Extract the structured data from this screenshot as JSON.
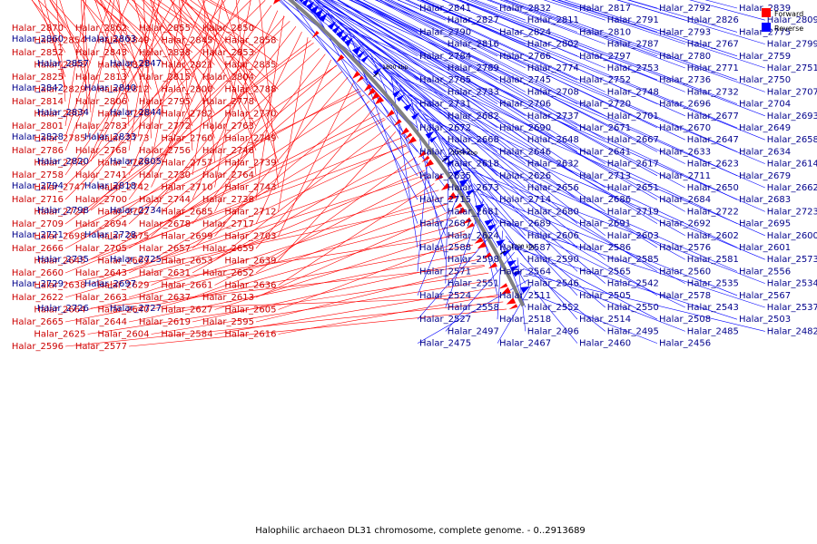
{
  "caption": "Halophilic archaeon DL31 chromosome, complete genome. - 0..2913689",
  "legend": [
    {
      "label": "Forward",
      "color": "#ff0000"
    },
    {
      "label": "Reverse",
      "color": "#0000ff"
    }
  ],
  "colors": {
    "forward": "#ff0000",
    "reverse": "#0000ff",
    "label_forward": "#cc0000",
    "label_reverse": "#00008b",
    "backbone": "#808080"
  },
  "ticks": [
    "2050 kbp",
    "2000 kbp",
    "1950 kbp",
    "1900 kbp",
    "1850 kbp",
    "1800 kbp",
    "1750 kbp",
    "1700 kbp"
  ],
  "forward_labels": [
    "Halar_2870",
    "Halar_2862",
    "Halar_2855",
    "Halar_2850",
    "Halar_2854",
    "Halar_2849",
    "Halar_2845",
    "Halar_2858",
    "Halar_2852",
    "Halar_2843",
    "Halar_2838",
    "Halar_2853",
    "Halar_2848",
    "Halar_2831",
    "Halar_2821",
    "Halar_2835",
    "Halar_2825",
    "Halar_2813",
    "Halar_2815",
    "Halar_2804",
    "Halar_2829",
    "Halar_2812",
    "Halar_2800",
    "Halar_2788",
    "Halar_2814",
    "Halar_2806",
    "Halar_2795",
    "Halar_2778",
    "Halar_2807",
    "Halar_2796",
    "Halar_2782",
    "Halar_2770",
    "Halar_2801",
    "Halar_2783",
    "Halar_2772",
    "Halar_2763",
    "Halar_2785",
    "Halar_2773",
    "Halar_2760",
    "Halar_2749",
    "Halar_2786",
    "Halar_2768",
    "Halar_2756",
    "Halar_2746",
    "Halar_2776",
    "Halar_2769",
    "Halar_2757",
    "Halar_2739",
    "Halar_2758",
    "Halar_2741",
    "Halar_2730",
    "Halar_2764",
    "Halar_2747",
    "Halar_2742",
    "Halar_2710",
    "Halar_2743",
    "Halar_2716",
    "Halar_2700",
    "Halar_2744",
    "Halar_2738",
    "Halar_2724",
    "Halar_2702",
    "Halar_2685",
    "Halar_2712",
    "Halar_2709",
    "Halar_2694",
    "Halar_2678",
    "Halar_2717",
    "Halar_2698",
    "Halar_2675",
    "Halar_2699",
    "Halar_2703",
    "Halar_2666",
    "Halar_2705",
    "Halar_2657",
    "Halar_2659",
    "Halar_2645",
    "Halar_2669",
    "Halar_2653",
    "Halar_2639",
    "Halar_2660",
    "Halar_2643",
    "Halar_2631",
    "Halar_2652",
    "Halar_2638",
    "Halar_2629",
    "Halar_2661",
    "Halar_2636",
    "Halar_2622",
    "Halar_2663",
    "Halar_2637",
    "Halar_2613",
    "Halar_2664",
    "Halar_2640",
    "Halar_2627",
    "Halar_2605",
    "Halar_2665",
    "Halar_2644",
    "Halar_2619",
    "Halar_2595",
    "Halar_2625",
    "Halar_2604",
    "Halar_2584",
    "Halar_2616",
    "Halar_2596",
    "Halar_2577"
  ],
  "reverse_labels_left": [
    "Halar_2860",
    "Halar_2863",
    "Halar_2857",
    "Halar_2847",
    "Halar_2842",
    "Halar_2840",
    "Halar_2834",
    "Halar_2844",
    "Halar_2828",
    "Halar_2833",
    "Halar_2820",
    "Halar_2805",
    "Halar_2794",
    "Halar_2818",
    "Halar_2798",
    "Halar_2734",
    "Halar_2721",
    "Halar_2728",
    "Halar_2735",
    "Halar_2725",
    "Halar_2729",
    "Halar_2697",
    "Halar_2726",
    "Halar_2727"
  ],
  "reverse_labels_right": [
    "Halar_2841",
    "Halar_2832",
    "Halar_2817",
    "Halar_2792",
    "Halar_2839",
    "Halar_2827",
    "Halar_2811",
    "Halar_2791",
    "Halar_2826",
    "Halar_2809",
    "Halar_2790",
    "Halar_2824",
    "Halar_2810",
    "Halar_2793",
    "Halar_2775",
    "Halar_2816",
    "Halar_2802",
    "Halar_2787",
    "Halar_2767",
    "Halar_2799",
    "Halar_2784",
    "Halar_2766",
    "Halar_2797",
    "Halar_2780",
    "Halar_2759",
    "Halar_2789",
    "Halar_2774",
    "Halar_2753",
    "Halar_2771",
    "Halar_2751",
    "Halar_2765",
    "Halar_2745",
    "Halar_2752",
    "Halar_2736",
    "Halar_2750",
    "Halar_2733",
    "Halar_2708",
    "Halar_2748",
    "Halar_2732",
    "Halar_2707",
    "Halar_2731",
    "Halar_2706",
    "Halar_2720",
    "Halar_2696",
    "Halar_2704",
    "Halar_2682",
    "Halar_2737",
    "Halar_2701",
    "Halar_2677",
    "Halar_2693",
    "Halar_2672",
    "Halar_2690",
    "Halar_2671",
    "Halar_2670",
    "Halar_2649",
    "Halar_2668",
    "Halar_2648",
    "Halar_2667",
    "Halar_2647",
    "Halar_2658",
    "Halar_2642",
    "Halar_2646",
    "Halar_2641",
    "Halar_2633",
    "Halar_2634",
    "Halar_2618",
    "Halar_2632",
    "Halar_2617",
    "Halar_2623",
    "Halar_2614",
    "Halar_2635",
    "Halar_2626",
    "Halar_2713",
    "Halar_2711",
    "Halar_2679",
    "Halar_2673",
    "Halar_2656",
    "Halar_2651",
    "Halar_2650",
    "Halar_2662",
    "Halar_2715",
    "Halar_2714",
    "Halar_2686",
    "Halar_2684",
    "Halar_2683",
    "Halar_2681",
    "Halar_2680",
    "Halar_2719",
    "Halar_2722",
    "Halar_2723",
    "Halar_2687",
    "Halar_2689",
    "Halar_2691",
    "Halar_2692",
    "Halar_2695",
    "Halar_2624",
    "Halar_2606",
    "Halar_2603",
    "Halar_2602",
    "Halar_2600",
    "Halar_2588",
    "Halar_2587",
    "Halar_2586",
    "Halar_2576",
    "Halar_2601",
    "Halar_2598",
    "Halar_2590",
    "Halar_2585",
    "Halar_2581",
    "Halar_2573",
    "Halar_2571",
    "Halar_2564",
    "Halar_2565",
    "Halar_2560",
    "Halar_2556",
    "Halar_2551",
    "Halar_2546",
    "Halar_2542",
    "Halar_2535",
    "Halar_2534",
    "Halar_2524",
    "Halar_2511",
    "Halar_2505",
    "Halar_2578",
    "Halar_2567",
    "Halar_2558",
    "Halar_2552",
    "Halar_2550",
    "Halar_2543",
    "Halar_2537",
    "Halar_2527",
    "Halar_2518",
    "Halar_2514",
    "Halar_2508",
    "Halar_2503",
    "Halar_2497",
    "Halar_2496",
    "Halar_2495",
    "Halar_2485",
    "Halar_2482",
    "Halar_2475",
    "Halar_2467",
    "Halar_2460",
    "Halar_2456"
  ]
}
